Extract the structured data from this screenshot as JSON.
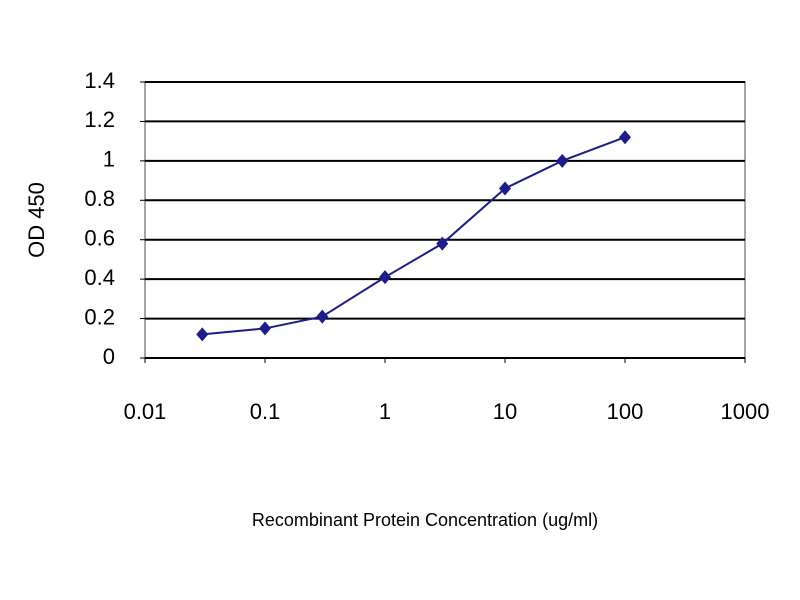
{
  "chart_data": {
    "type": "line",
    "x_label": "Recombinant Protein Concentration (ug/ml)",
    "y_label": "OD 450",
    "x": [
      0.03,
      0.1,
      0.3,
      1,
      3,
      10,
      30,
      100
    ],
    "values": [
      0.12,
      0.15,
      0.21,
      0.41,
      0.58,
      0.86,
      1.0,
      1.12
    ],
    "color": "#1c1c8a",
    "xscale": "log",
    "xlim": [
      0.01,
      1000
    ],
    "xticks": [
      0.01,
      0.1,
      1,
      10,
      100,
      1000
    ],
    "ylim": [
      0,
      1.4
    ],
    "yticks": [
      0,
      0.2,
      0.4,
      0.6,
      0.8,
      1,
      1.2,
      1.4
    ],
    "grid": true
  }
}
